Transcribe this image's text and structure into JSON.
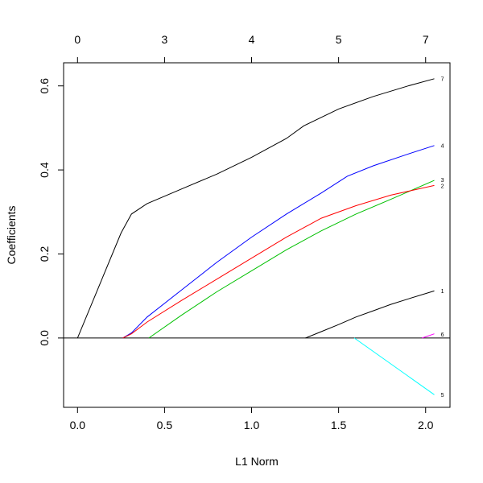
{
  "chart_data": {
    "type": "line",
    "xlabel": "L1 Norm",
    "ylabel": "Coefficients",
    "xlim": [
      -0.08,
      2.14
    ],
    "ylim": [
      -0.165,
      0.655
    ],
    "x_ticks": [
      {
        "value": 0.0,
        "label": "0.0"
      },
      {
        "value": 0.5,
        "label": "0.5"
      },
      {
        "value": 1.0,
        "label": "1.0"
      },
      {
        "value": 1.5,
        "label": "1.5"
      },
      {
        "value": 2.0,
        "label": "2.0"
      }
    ],
    "y_ticks": [
      {
        "value": 0.0,
        "label": "0.0"
      },
      {
        "value": 0.2,
        "label": "0.2"
      },
      {
        "value": 0.4,
        "label": "0.4"
      },
      {
        "value": 0.6,
        "label": "0.6"
      }
    ],
    "top_ticks": [
      {
        "value": 0.0,
        "label": "0"
      },
      {
        "value": 0.5,
        "label": "3"
      },
      {
        "value": 1.0,
        "label": "4"
      },
      {
        "value": 1.5,
        "label": "5"
      },
      {
        "value": 2.0,
        "label": "7"
      }
    ],
    "zero_line": true,
    "series": [
      {
        "name": "7",
        "color": "#000000",
        "points": [
          [
            0.0,
            0.0
          ],
          [
            0.25,
            0.25
          ],
          [
            0.31,
            0.295
          ],
          [
            0.4,
            0.32
          ],
          [
            0.6,
            0.355
          ],
          [
            0.8,
            0.39
          ],
          [
            1.0,
            0.43
          ],
          [
            1.2,
            0.475
          ],
          [
            1.3,
            0.505
          ],
          [
            1.5,
            0.545
          ],
          [
            1.7,
            0.575
          ],
          [
            1.9,
            0.6
          ],
          [
            2.05,
            0.617
          ]
        ]
      },
      {
        "name": "4",
        "color": "#0000ff",
        "points": [
          [
            0.26,
            0.0
          ],
          [
            0.31,
            0.012
          ],
          [
            0.4,
            0.05
          ],
          [
            0.6,
            0.115
          ],
          [
            0.8,
            0.18
          ],
          [
            1.0,
            0.24
          ],
          [
            1.2,
            0.295
          ],
          [
            1.4,
            0.345
          ],
          [
            1.55,
            0.385
          ],
          [
            1.7,
            0.41
          ],
          [
            1.9,
            0.438
          ],
          [
            2.05,
            0.458
          ]
        ]
      },
      {
        "name": "3",
        "color": "#00c000",
        "points": [
          [
            0.41,
            0.0
          ],
          [
            0.6,
            0.055
          ],
          [
            0.8,
            0.11
          ],
          [
            1.0,
            0.16
          ],
          [
            1.2,
            0.21
          ],
          [
            1.4,
            0.255
          ],
          [
            1.6,
            0.295
          ],
          [
            1.8,
            0.33
          ],
          [
            2.05,
            0.375
          ]
        ]
      },
      {
        "name": "2",
        "color": "#ff0000",
        "points": [
          [
            0.26,
            0.0
          ],
          [
            0.31,
            0.01
          ],
          [
            0.4,
            0.038
          ],
          [
            0.6,
            0.09
          ],
          [
            0.8,
            0.14
          ],
          [
            1.0,
            0.19
          ],
          [
            1.2,
            0.24
          ],
          [
            1.4,
            0.285
          ],
          [
            1.6,
            0.315
          ],
          [
            1.8,
            0.34
          ],
          [
            2.05,
            0.363
          ]
        ]
      },
      {
        "name": "1",
        "color": "#000000",
        "points": [
          [
            1.31,
            0.0
          ],
          [
            1.4,
            0.015
          ],
          [
            1.5,
            0.032
          ],
          [
            1.6,
            0.05
          ],
          [
            1.7,
            0.065
          ],
          [
            1.8,
            0.08
          ],
          [
            1.9,
            0.093
          ],
          [
            2.05,
            0.112
          ]
        ]
      },
      {
        "name": "6",
        "color": "#ff00ff",
        "points": [
          [
            1.98,
            0.0
          ],
          [
            2.05,
            0.01
          ]
        ]
      },
      {
        "name": "5",
        "color": "#00ffff",
        "points": [
          [
            1.59,
            0.0
          ],
          [
            2.05,
            -0.135
          ]
        ]
      }
    ],
    "series_labels": [
      {
        "text": "7",
        "y": 0.617
      },
      {
        "text": "4",
        "y": 0.458
      },
      {
        "text": "3",
        "y": 0.376
      },
      {
        "text": "2",
        "y": 0.362
      },
      {
        "text": "1",
        "y": 0.112
      },
      {
        "text": "6",
        "y": 0.008
      },
      {
        "text": "5",
        "y": -0.135
      }
    ]
  }
}
